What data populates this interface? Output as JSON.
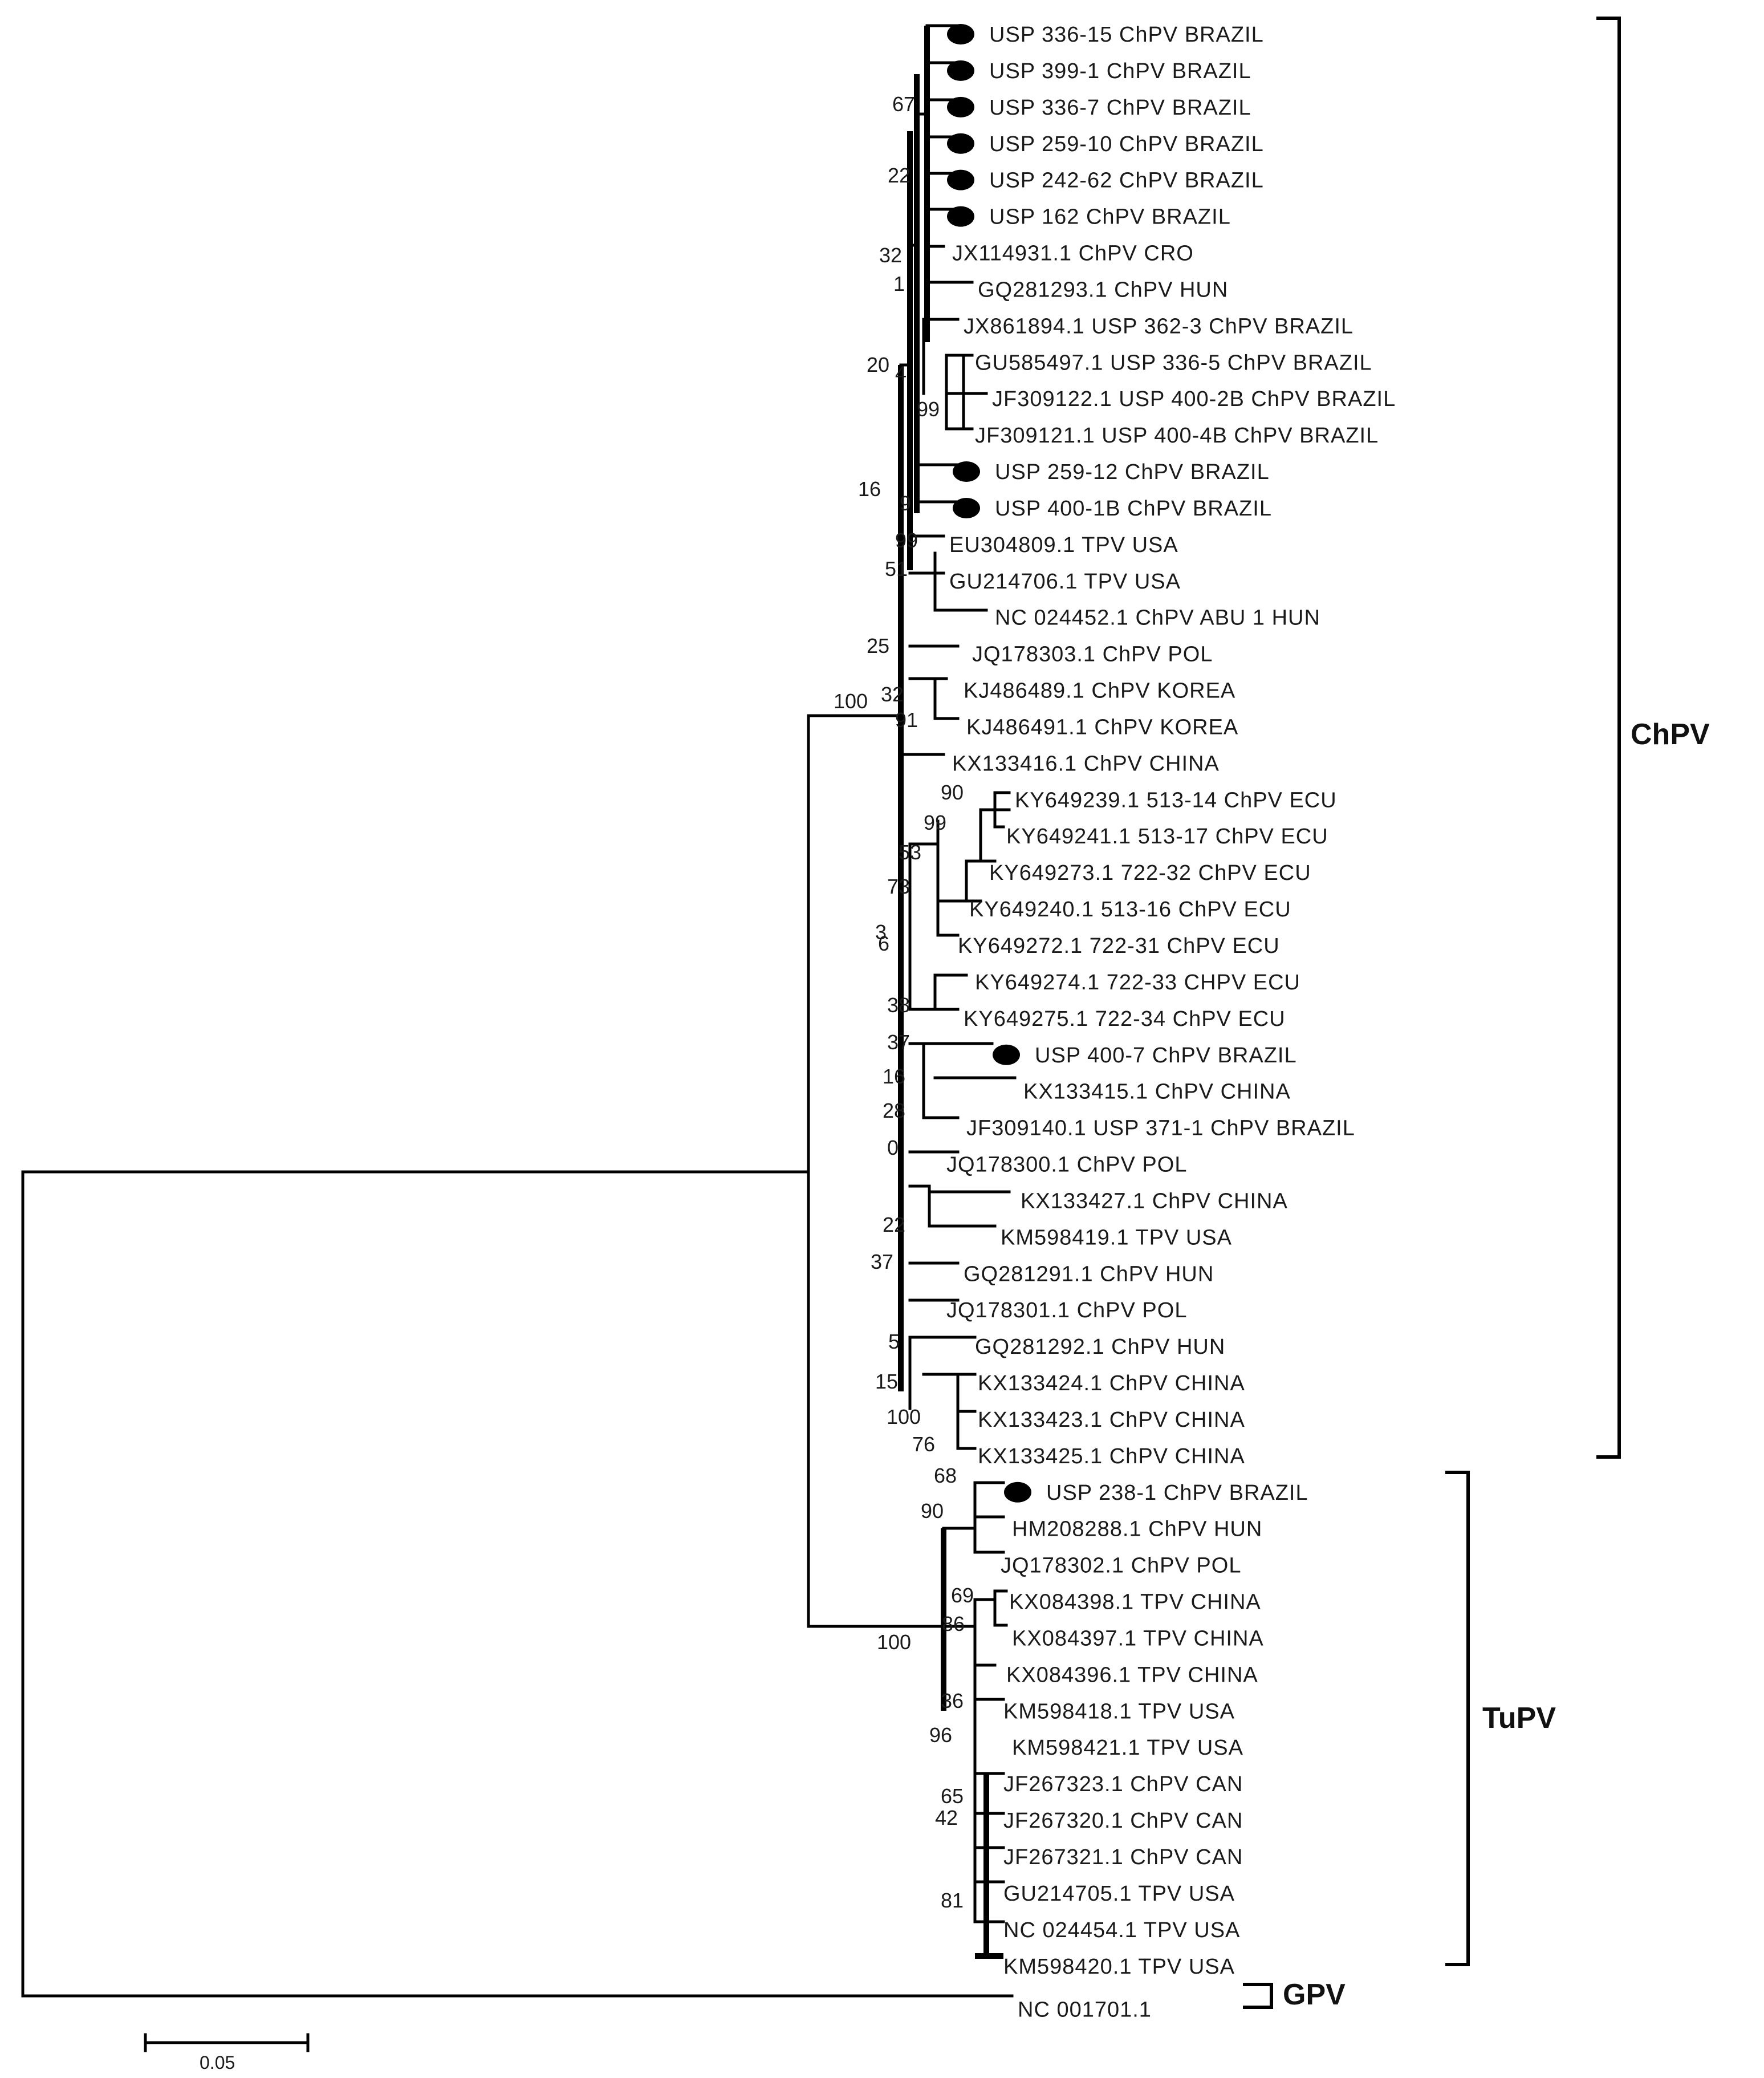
{
  "title": "",
  "scale_bar": {
    "label": "0.05",
    "value": 0.05
  },
  "marker_color": "#000000",
  "clades": {
    "chpv": {
      "label": "ChPV"
    },
    "tupv": {
      "label": "TuPV"
    },
    "gpv": {
      "label": "GPV"
    }
  },
  "taxa": [
    {
      "name": "USP 336-15 ChPV BRAZIL",
      "marker": true
    },
    {
      "name": "USP 399-1 ChPV BRAZIL",
      "marker": true
    },
    {
      "name": "USP 336-7 ChPV BRAZIL",
      "marker": true
    },
    {
      "name": "USP 259-10 ChPV BRAZIL",
      "marker": true
    },
    {
      "name": "USP 242-62 ChPV BRAZIL",
      "marker": true
    },
    {
      "name": "USP 162 ChPV BRAZIL",
      "marker": true
    },
    {
      "name": "JX114931.1 ChPV CRO",
      "marker": false
    },
    {
      "name": "GQ281293.1 ChPV HUN",
      "marker": false
    },
    {
      "name": "JX861894.1 USP 362-3 ChPV BRAZIL",
      "marker": false
    },
    {
      "name": "GU585497.1 USP 336-5 ChPV BRAZIL",
      "marker": false
    },
    {
      "name": "JF309122.1 USP 400-2B ChPV BRAZIL",
      "marker": false
    },
    {
      "name": "JF309121.1 USP 400-4B ChPV BRAZIL",
      "marker": false
    },
    {
      "name": "USP 259-12 ChPV BRAZIL",
      "marker": true
    },
    {
      "name": "USP 400-1B ChPV BRAZIL",
      "marker": true
    },
    {
      "name": "EU304809.1 TPV USA",
      "marker": false
    },
    {
      "name": "GU214706.1 TPV USA",
      "marker": false
    },
    {
      "name": "NC 024452.1 ChPV ABU 1 HUN",
      "marker": false
    },
    {
      "name": "JQ178303.1 ChPV POL",
      "marker": false
    },
    {
      "name": "KJ486489.1 ChPV KOREA",
      "marker": false
    },
    {
      "name": "KJ486491.1 ChPV KOREA",
      "marker": false
    },
    {
      "name": "KX133416.1 ChPV CHINA",
      "marker": false
    },
    {
      "name": "KY649239.1 513-14 ChPV ECU",
      "marker": false
    },
    {
      "name": "KY649241.1 513-17 ChPV ECU",
      "marker": false
    },
    {
      "name": "KY649273.1 722-32 ChPV ECU",
      "marker": false
    },
    {
      "name": "KY649240.1 513-16 ChPV ECU",
      "marker": false
    },
    {
      "name": "KY649272.1 722-31 ChPV ECU",
      "marker": false
    },
    {
      "name": "KY649274.1 722-33 CHPV ECU",
      "marker": false
    },
    {
      "name": "KY649275.1 722-34 ChPV ECU",
      "marker": false
    },
    {
      "name": "USP 400-7 ChPV BRAZIL",
      "marker": true
    },
    {
      "name": "KX133415.1 ChPV CHINA",
      "marker": false
    },
    {
      "name": "JF309140.1 USP 371-1 ChPV BRAZIL",
      "marker": false
    },
    {
      "name": "JQ178300.1 ChPV POL",
      "marker": false
    },
    {
      "name": "KX133427.1 ChPV CHINA",
      "marker": false
    },
    {
      "name": "KM598419.1 TPV USA",
      "marker": false
    },
    {
      "name": "GQ281291.1 ChPV HUN",
      "marker": false
    },
    {
      "name": "JQ178301.1 ChPV POL",
      "marker": false
    },
    {
      "name": "GQ281292.1 ChPV HUN",
      "marker": false
    },
    {
      "name": "KX133424.1 ChPV CHINA",
      "marker": false
    },
    {
      "name": "KX133423.1 ChPV CHINA",
      "marker": false
    },
    {
      "name": "KX133425.1 ChPV CHINA",
      "marker": false
    },
    {
      "name": "USP 238-1 ChPV BRAZIL",
      "marker": true
    },
    {
      "name": "HM208288.1 ChPV HUN",
      "marker": false
    },
    {
      "name": "JQ178302.1 ChPV POL",
      "marker": false
    },
    {
      "name": "KX084398.1 TPV CHINA",
      "marker": false
    },
    {
      "name": "KX084397.1 TPV CHINA",
      "marker": false
    },
    {
      "name": "KX084396.1 TPV CHINA",
      "marker": false
    },
    {
      "name": "KM598418.1 TPV USA",
      "marker": false
    },
    {
      "name": "KM598421.1 TPV USA",
      "marker": false
    },
    {
      "name": "JF267323.1 ChPV CAN",
      "marker": false
    },
    {
      "name": "JF267320.1 ChPV CAN",
      "marker": false
    },
    {
      "name": "JF267321.1 ChPV CAN",
      "marker": false
    },
    {
      "name": "GU214705.1 TPV USA",
      "marker": false
    },
    {
      "name": "NC 024454.1 TPV USA",
      "marker": false
    },
    {
      "name": "KM598420.1 TPV USA",
      "marker": false
    },
    {
      "name": "NC 001701.1",
      "marker": false
    }
  ],
  "bootstrap": [
    {
      "value": "67"
    },
    {
      "value": "22"
    },
    {
      "value": "32"
    },
    {
      "value": "1"
    },
    {
      "value": "20"
    },
    {
      "value": "4"
    },
    {
      "value": "99"
    },
    {
      "value": "16"
    },
    {
      "value": "9"
    },
    {
      "value": "99"
    },
    {
      "value": "51"
    },
    {
      "value": "25"
    },
    {
      "value": "100"
    },
    {
      "value": "32"
    },
    {
      "value": "91"
    },
    {
      "value": "90"
    },
    {
      "value": "99"
    },
    {
      "value": "53"
    },
    {
      "value": "73"
    },
    {
      "value": "3"
    },
    {
      "value": "6"
    },
    {
      "value": "38"
    },
    {
      "value": "37"
    },
    {
      "value": "16"
    },
    {
      "value": "28"
    },
    {
      "value": "0"
    },
    {
      "value": "22"
    },
    {
      "value": "37"
    },
    {
      "value": "5"
    },
    {
      "value": "15"
    },
    {
      "value": "100"
    },
    {
      "value": "76"
    },
    {
      "value": "68"
    },
    {
      "value": "90"
    },
    {
      "value": "69"
    },
    {
      "value": "86"
    },
    {
      "value": "100"
    },
    {
      "value": "36"
    },
    {
      "value": "96"
    },
    {
      "value": "65"
    },
    {
      "value": "42"
    },
    {
      "value": "81"
    }
  ]
}
